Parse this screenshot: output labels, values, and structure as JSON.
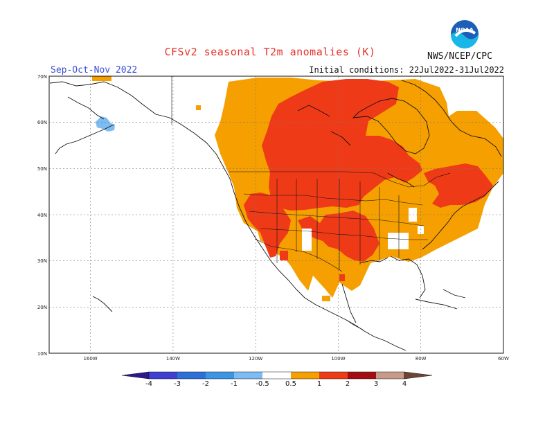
{
  "header": {
    "title": "CFSv2 seasonal T2m anomalies (K)",
    "season": "Sep-Oct-Nov 2022",
    "initial_conditions": "Initial conditions: 22Jul2022-31Jul2022",
    "agency": "NWS/NCEP/CPC",
    "logo_text": "NOAA"
  },
  "map": {
    "lat_labels": [
      "70N",
      "60N",
      "50N",
      "40N",
      "30N",
      "20N",
      "10N"
    ],
    "lon_labels": [
      "160W",
      "140W",
      "120W",
      "100W",
      "80W",
      "60W"
    ],
    "extent": {
      "lon_min": -170,
      "lon_max": -60,
      "lat_min": 10,
      "lat_max": 70
    },
    "anomaly_regions": [
      {
        "name": "canada-us-broad-warm",
        "level": "0.5-1"
      },
      {
        "name": "central-canada-core",
        "level": "1-2"
      },
      {
        "name": "southwest-us",
        "level": "1-2"
      },
      {
        "name": "south-central-us",
        "level": "1-2"
      },
      {
        "name": "northeast-us-maritimes",
        "level": "1-2"
      },
      {
        "name": "western-alaska-cool",
        "level": "-1--0.5"
      }
    ]
  },
  "colorbar": {
    "labels": [
      "-4",
      "-3",
      "-2",
      "-1",
      "-0.5",
      "0.5",
      "1",
      "2",
      "3",
      "4"
    ],
    "colors": [
      "#2b1a8c",
      "#3f3fd2",
      "#2c6fd6",
      "#3a95e3",
      "#7cbcf2",
      "#ffffff",
      "#f59f00",
      "#ef3a18",
      "#a30d12",
      "#c79a8a",
      "#6e4436"
    ]
  }
}
